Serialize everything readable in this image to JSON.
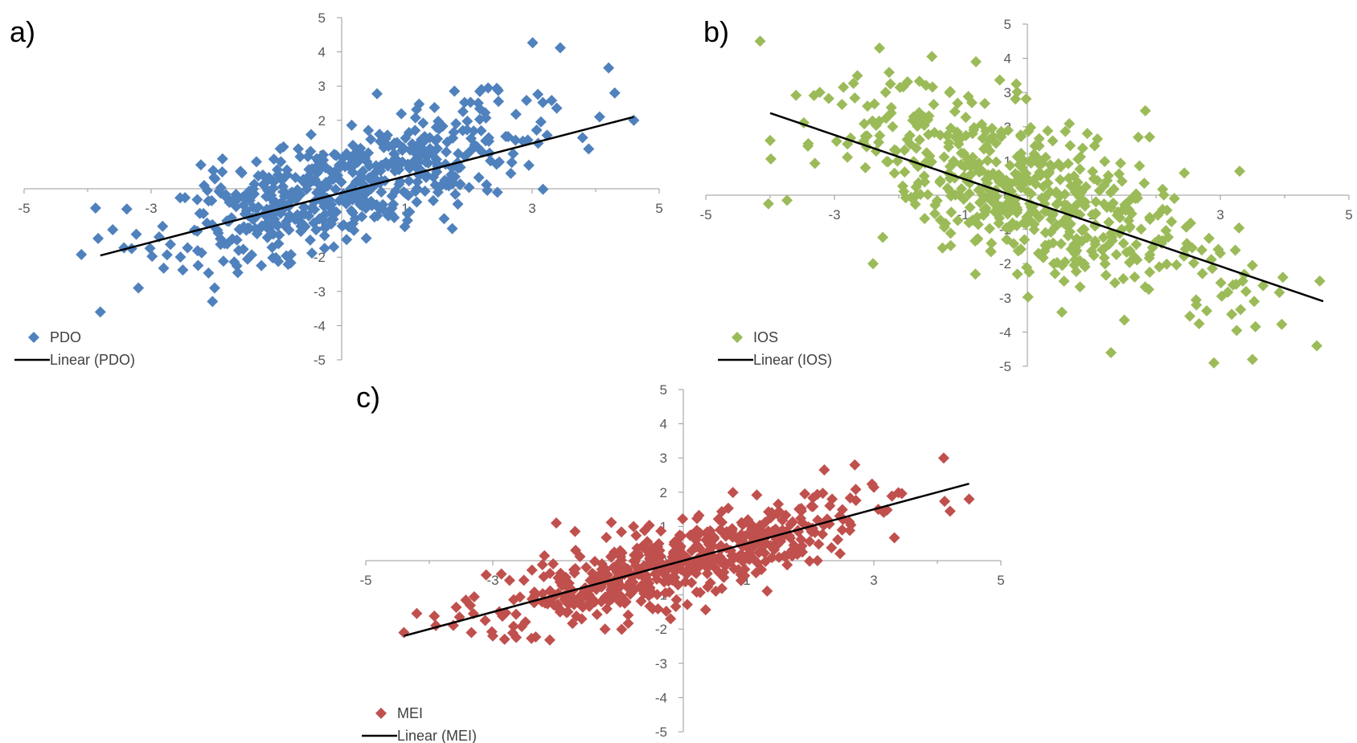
{
  "chart_data": [
    {
      "type": "scatter",
      "panel_label": "a)",
      "color": "#4F81BD",
      "xlim": [
        -5,
        5
      ],
      "ylim": [
        -5,
        5
      ],
      "xticks": [
        "-5",
        "-3",
        "-1",
        "1",
        "3",
        "5"
      ],
      "yticks": [
        "5",
        "4",
        "3",
        "2",
        "1",
        "0",
        "-1",
        "-2",
        "-3",
        "-4",
        "-5"
      ],
      "series": [
        {
          "name": "PDO",
          "marker": "diamond",
          "trend": "positive",
          "slope": 0.5,
          "intercept": 0.0,
          "spread": 0.8,
          "n": 560,
          "seed": 11,
          "points": [
            [
              -3.8,
              -3.6
            ],
            [
              4.6,
              2.0
            ],
            [
              2.2,
              2.9
            ],
            [
              4.3,
              2.8
            ],
            [
              -3.2,
              -2.9
            ],
            [
              1.8,
              1.9
            ],
            [
              -2.0,
              -2.9
            ]
          ]
        },
        {
          "name": "Linear (PDO)",
          "type": "line",
          "x": [
            -3.8,
            4.6
          ],
          "y": [
            -1.95,
            2.1
          ]
        }
      ]
    },
    {
      "type": "scatter",
      "panel_label": "b)",
      "color": "#9BBB59",
      "xlim": [
        -5,
        5
      ],
      "ylim": [
        -5,
        5
      ],
      "xticks": [
        "-5",
        "-3",
        "-1",
        "1",
        "3",
        "5"
      ],
      "yticks": [
        "5",
        "4",
        "3",
        "2",
        "1",
        "0",
        "-1",
        "-2",
        "-3",
        "-4",
        "-5"
      ],
      "series": [
        {
          "name": "IOS",
          "marker": "diamond",
          "trend": "negative",
          "slope": -0.62,
          "intercept": 0.0,
          "spread": 1.1,
          "n": 560,
          "seed": 23,
          "points": [
            [
              -2.3,
              4.3
            ],
            [
              -0.8,
              3.9
            ],
            [
              4.5,
              -4.4
            ],
            [
              2.9,
              -4.9
            ],
            [
              3.5,
              -4.8
            ],
            [
              -4.0,
              1.6
            ],
            [
              1.9,
              1.7
            ],
            [
              3.3,
              0.7
            ],
            [
              -2.4,
              -2.0
            ],
            [
              1.3,
              -4.6
            ]
          ]
        },
        {
          "name": "Linear (IOS)",
          "type": "line",
          "x": [
            -4.0,
            4.6
          ],
          "y": [
            2.4,
            -3.1
          ]
        }
      ]
    },
    {
      "type": "scatter",
      "panel_label": "c)",
      "color": "#C0504D",
      "xlim": [
        -5,
        5
      ],
      "ylim": [
        -5,
        5
      ],
      "xticks": [
        "-5",
        "-3",
        "-1",
        "1",
        "3",
        "5"
      ],
      "yticks": [
        "5",
        "4",
        "3",
        "2",
        "1",
        "0",
        "-1",
        "-2",
        "-3",
        "-4",
        "-5"
      ],
      "series": [
        {
          "name": "MEI",
          "marker": "diamond",
          "trend": "positive",
          "slope": 0.5,
          "intercept": 0.0,
          "spread": 0.55,
          "n": 560,
          "seed": 37,
          "points": [
            [
              -4.4,
              -2.1
            ],
            [
              4.5,
              1.8
            ],
            [
              4.1,
              3.0
            ],
            [
              -3.0,
              -2.2
            ],
            [
              -2.0,
              1.1
            ],
            [
              -0.2,
              -1.7
            ],
            [
              2.7,
              2.8
            ]
          ]
        },
        {
          "name": "Linear (MEI)",
          "type": "line",
          "x": [
            -4.4,
            4.5
          ],
          "y": [
            -2.2,
            2.25
          ]
        }
      ]
    }
  ]
}
